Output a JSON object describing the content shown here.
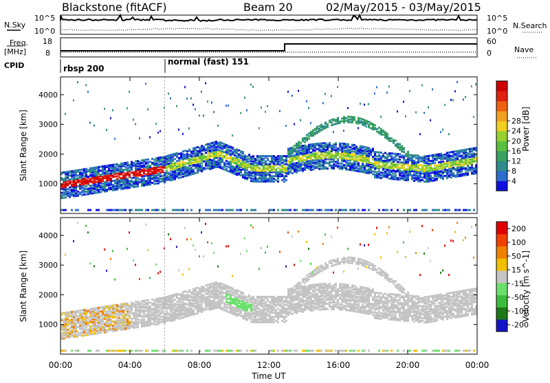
{
  "header": {
    "station": "Blackstone (fitACF)",
    "beam": "Beam 20",
    "date_range": "02/May/2015 - 03/May/2015"
  },
  "nsky_panel": {
    "left_label": "N.Sky",
    "right_label": "N.Search",
    "left_ticks": [
      "10^5",
      "10^0"
    ],
    "right_ticks": [
      "10^5",
      "10^0"
    ]
  },
  "freq_panel": {
    "left_label_1": "Freq.",
    "left_label_2": "[MHz]",
    "right_label": "Nave",
    "left_ticks": [
      "18",
      "8"
    ],
    "right_ticks": [
      "60",
      "0"
    ]
  },
  "cpid_panel": {
    "label": "CPID",
    "modes": [
      {
        "text": "rbsp 200",
        "start_hour": 0
      },
      {
        "text": "normal (fast) 151",
        "start_hour": 6
      }
    ]
  },
  "chart_data": [
    {
      "type": "heatmap",
      "name": "power",
      "ylabel": "Slant Range [km]",
      "ylim": [
        0,
        4600
      ],
      "yticks": [
        "1000",
        "2000",
        "3000",
        "4000"
      ],
      "colorbar": {
        "label": "Power [dB]",
        "ticks": [
          "4",
          "8",
          "12",
          "16",
          "20",
          "24",
          "28"
        ],
        "colors": [
          "#1010e0",
          "#2c6cd0",
          "#2e8b8b",
          "#3aa060",
          "#58c040",
          "#98d030",
          "#f0d020",
          "#f0a020",
          "#f06010",
          "#e02010",
          "#d00000"
        ]
      }
    },
    {
      "type": "heatmap",
      "name": "velocity",
      "ylabel": "Slant Range [km]",
      "ylim": [
        0,
        4600
      ],
      "yticks": [
        "1000",
        "2000",
        "3000",
        "4000"
      ],
      "colorbar": {
        "label": "Velocity [m s^-1]",
        "ticks": [
          "200",
          "100",
          "50",
          "15",
          "-15",
          "-50",
          "-100",
          "-200"
        ],
        "colors": [
          "#1414c8",
          "#1e7818",
          "#3cbc3c",
          "#6ce06c",
          "#c4c4c4",
          "#f0c000",
          "#f08000",
          "#f04000",
          "#e00000"
        ]
      }
    }
  ],
  "x_axis": {
    "label": "Time UT",
    "ticks": [
      "00:00",
      "04:00",
      "08:00",
      "12:00",
      "16:00",
      "20:00",
      "00:00"
    ]
  }
}
